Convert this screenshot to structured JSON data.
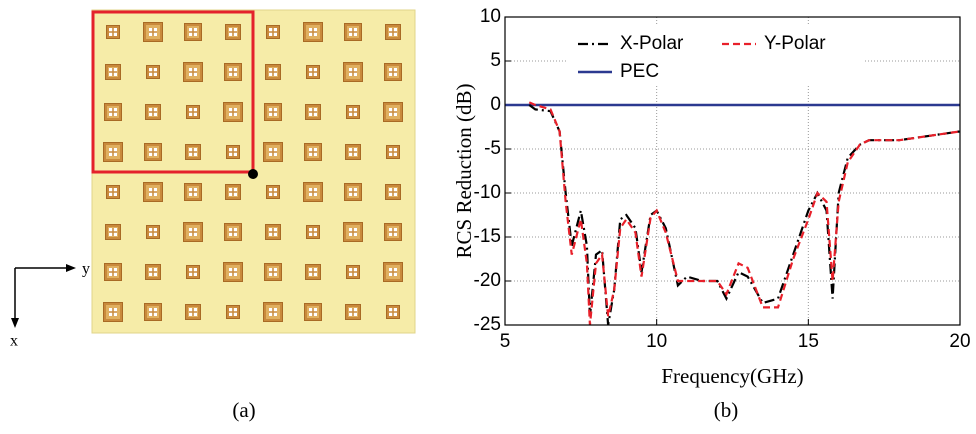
{
  "panel_a": {
    "label": "(a)",
    "axis_x": "x",
    "axis_y": "y"
  },
  "panel_b_label": "(b)",
  "chart_data": {
    "type": "line",
    "xlabel": "Frequency(GHz)",
    "ylabel": "RCS Reduction (dB)",
    "xlim": [
      5,
      20
    ],
    "xticks": [
      5,
      10,
      15,
      20
    ],
    "ylim": [
      -25,
      10
    ],
    "yticks": [
      -25,
      -20,
      -15,
      -10,
      -5,
      0,
      5,
      10
    ],
    "grid": true,
    "legend": "upper center",
    "series": [
      {
        "name": "X-Polar",
        "color": "#000000",
        "x": [
          5.8,
          6,
          6.5,
          6.8,
          7,
          7.2,
          7.5,
          7.7,
          7.8,
          8,
          8.2,
          8.4,
          8.6,
          8.8,
          9,
          9.3,
          9.5,
          9.8,
          10,
          10.3,
          10.7,
          11,
          11.5,
          12,
          12.3,
          12.7,
          13,
          13.5,
          14,
          14.5,
          15,
          15.3,
          15.6,
          15.8,
          16,
          16.3,
          16.7,
          17,
          18,
          19,
          20
        ],
        "values": [
          0,
          -0.5,
          -0.7,
          -3,
          -10,
          -16,
          -12,
          -16,
          -24,
          -17,
          -16.5,
          -25,
          -21,
          -13,
          -12.5,
          -14,
          -19,
          -12.5,
          -12,
          -14,
          -20.5,
          -19.5,
          -20,
          -20,
          -22,
          -19,
          -19.5,
          -22.5,
          -22,
          -17,
          -12,
          -10,
          -12,
          -22,
          -10,
          -6,
          -4.5,
          -4,
          -4,
          -3.5,
          -3
        ]
      },
      {
        "name": "Y-Polar",
        "color": "#e8202a",
        "x": [
          5.8,
          6,
          6.5,
          6.8,
          7,
          7.2,
          7.5,
          7.7,
          7.8,
          8,
          8.2,
          8.4,
          8.6,
          8.8,
          9,
          9.3,
          9.5,
          9.8,
          10,
          10.3,
          10.7,
          11,
          11.5,
          12,
          12.3,
          12.7,
          13,
          13.5,
          14,
          14.5,
          15,
          15.3,
          15.6,
          15.8,
          16,
          16.3,
          16.7,
          17,
          18,
          19,
          20
        ],
        "values": [
          0.3,
          0,
          -0.5,
          -3,
          -11,
          -17,
          -13,
          -18,
          -25,
          -18,
          -17,
          -24,
          -21,
          -14,
          -13,
          -14.5,
          -19.5,
          -12.8,
          -12,
          -14.5,
          -20,
          -20,
          -20,
          -20,
          -21.5,
          -18,
          -18.5,
          -23,
          -23,
          -17.5,
          -13,
          -10,
          -11,
          -20,
          -11,
          -6.5,
          -4.5,
          -4,
          -4,
          -3.5,
          -3
        ]
      },
      {
        "name": "PEC",
        "color": "#2b3990",
        "x": [
          5,
          20
        ],
        "values": [
          0,
          0
        ]
      }
    ]
  }
}
